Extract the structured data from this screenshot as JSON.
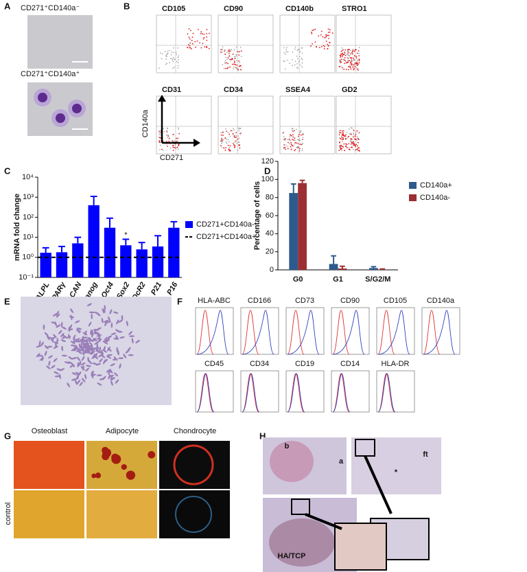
{
  "panel_labels": [
    "A",
    "B",
    "C",
    "D",
    "E",
    "F",
    "G",
    "H"
  ],
  "panel_a": {
    "titles": [
      "CD271⁺CD140a⁻",
      "CD271⁺CD140a⁺"
    ]
  },
  "panel_b": {
    "markers": [
      "CD105",
      "CD90",
      "CD140b",
      "STRO1",
      "CD31",
      "CD34",
      "SSEA4",
      "GD2"
    ],
    "y_label": "CD140a",
    "x_label": "CD271"
  },
  "chart_data": [
    {
      "type": "bar",
      "y_label": "mRNA fold change",
      "categories": [
        "ALPL",
        "PPARγ",
        "ACAN",
        "Nanog",
        "Oct4",
        "Sox2",
        "DcR2",
        "P21",
        "P16"
      ],
      "series": [
        {
          "name": "CD271+CD140a-",
          "color": "#0000ff",
          "values": [
            1.7,
            1.8,
            5,
            400,
            30,
            4,
            2.5,
            3.5,
            30
          ],
          "errors": [
            1.3,
            1.7,
            5,
            700,
            60,
            4,
            3,
            8.5,
            30
          ]
        }
      ],
      "significance": [
        null,
        null,
        null,
        null,
        null,
        "*",
        null,
        null,
        null
      ],
      "reference": {
        "name": "CD271+CD140a+",
        "value": 1
      },
      "log_scale": true,
      "ylim": [
        0.1,
        10000
      ],
      "yticks": [
        {
          "value": 0.1,
          "label": "10⁻¹"
        },
        {
          "value": 1,
          "label": "10⁰"
        },
        {
          "value": 10,
          "label": "10¹"
        },
        {
          "value": 100,
          "label": "10²"
        },
        {
          "value": 1000,
          "label": "10³"
        },
        {
          "value": 10000,
          "label": "10⁴"
        }
      ],
      "legend": "right"
    },
    {
      "type": "bar",
      "y_label": "Percentage of cells",
      "categories": [
        "G0",
        "G1",
        "S/G2/M"
      ],
      "series": [
        {
          "name": "CD140a+",
          "color": "#2d5a8c",
          "values": [
            85,
            6.5,
            2
          ],
          "errors": [
            10,
            9,
            1.5
          ]
        },
        {
          "name": "CD140a-",
          "color": "#9b2f33",
          "values": [
            96,
            1.5,
            0.5
          ],
          "errors": [
            3,
            2.5,
            0.5
          ]
        }
      ],
      "log_scale": false,
      "ylim": [
        0,
        120
      ],
      "yticks": [
        0,
        20,
        40,
        60,
        80,
        100,
        120
      ],
      "legend": "right"
    }
  ],
  "panel_f": {
    "markers": [
      "HLA-ABC",
      "CD166",
      "CD73",
      "CD90",
      "CD105",
      "CD140a",
      "CD45",
      "CD34",
      "CD19",
      "CD14",
      "HLA-DR"
    ]
  },
  "panel_g": {
    "columns": [
      "Osteoblast",
      "Adipocyte",
      "Chondrocyte"
    ],
    "row_label": "control"
  },
  "panel_h": {
    "labels": [
      "b",
      "a",
      "ft",
      "*",
      "HA/TCP"
    ]
  }
}
